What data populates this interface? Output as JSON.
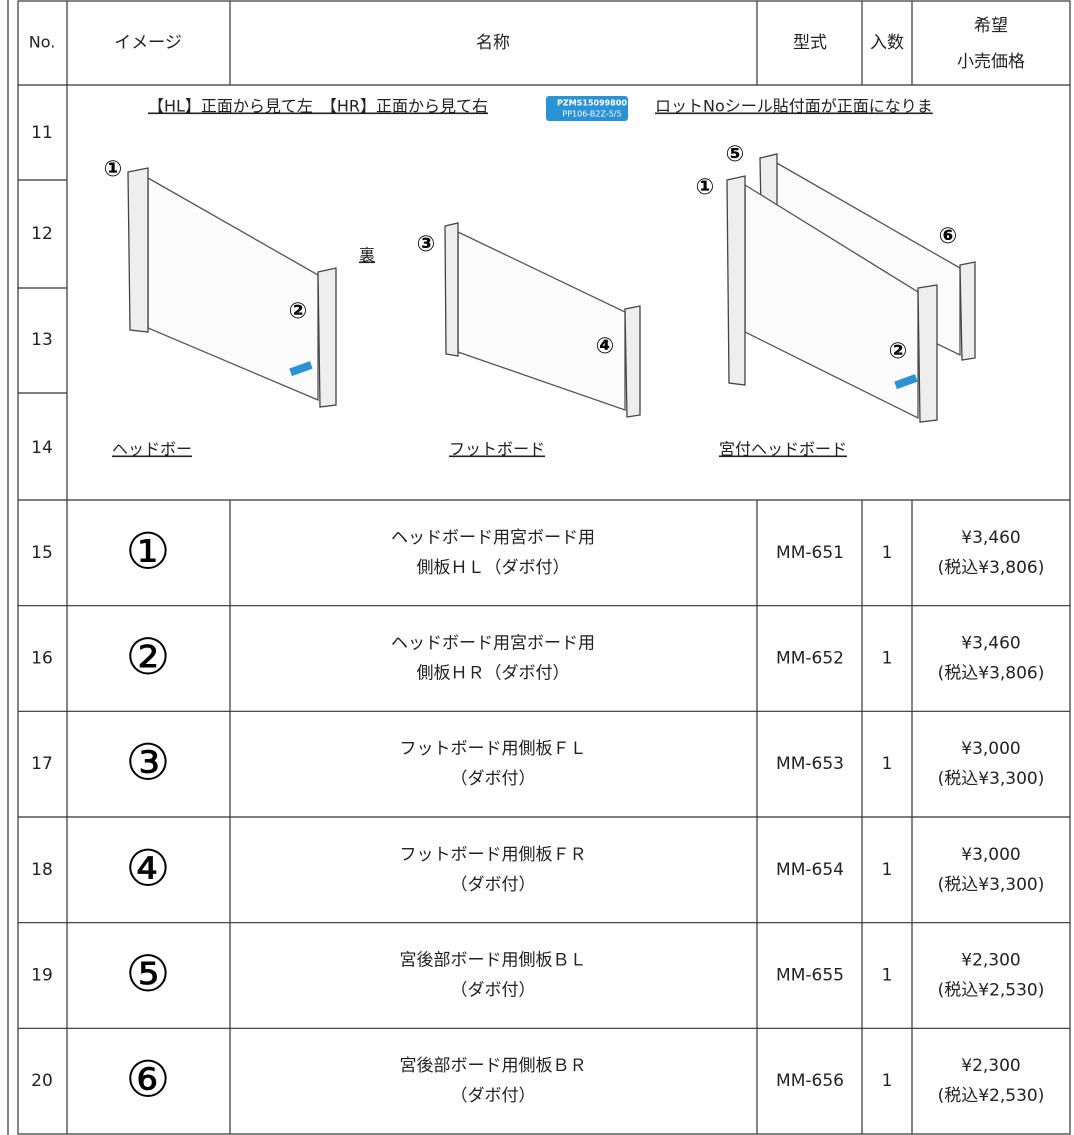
{
  "header": {
    "no": "No.",
    "image": "イメージ",
    "name": "名称",
    "model": "型式",
    "qty": "入数",
    "price": [
      "希望",
      "小売価格"
    ]
  },
  "illustration": {
    "row_numbers": [
      11,
      12,
      13,
      14
    ],
    "orientation_note": "【HL】正面から見て左　【HR】正面から見て右",
    "sticker": [
      "PZMS15099800",
      "PP106-B2Z-5/5"
    ],
    "sticker_note": "ロットNoシール貼付面が正面になりま",
    "back_label": "裏",
    "part_labels": [
      "①",
      "②",
      "③",
      "④",
      "⑤",
      "①",
      "⑥",
      "②"
    ],
    "captions": [
      "ヘッドボー",
      "フットボード",
      "宮付ヘッドボード"
    ]
  },
  "items": [
    {
      "no": 15,
      "image": "①",
      "name": [
        "ヘッドボード用宮ボード用",
        "側板ＨＬ（ダボ付）"
      ],
      "model": "MM-651",
      "qty": 1,
      "price": "¥3,460",
      "price_tax": "(税込¥3,806)"
    },
    {
      "no": 16,
      "image": "②",
      "name": [
        "ヘッドボード用宮ボード用",
        "側板ＨＲ（ダボ付）"
      ],
      "model": "MM-652",
      "qty": 1,
      "price": "¥3,460",
      "price_tax": "(税込¥3,806)"
    },
    {
      "no": 17,
      "image": "③",
      "name": [
        "フットボード用側板ＦＬ",
        "（ダボ付）"
      ],
      "model": "MM-653",
      "qty": 1,
      "price": "¥3,000",
      "price_tax": "(税込¥3,300)"
    },
    {
      "no": 18,
      "image": "④",
      "name": [
        "フットボード用側板ＦＲ",
        "（ダボ付）"
      ],
      "model": "MM-654",
      "qty": 1,
      "price": "¥3,000",
      "price_tax": "(税込¥3,300)"
    },
    {
      "no": 19,
      "image": "⑤",
      "name": [
        "宮後部ボード用側板ＢＬ",
        "（ダボ付）"
      ],
      "model": "MM-655",
      "qty": 1,
      "price": "¥2,300",
      "price_tax": "(税込¥2,530)"
    },
    {
      "no": 20,
      "image": "⑥",
      "name": [
        "宮後部ボード用側板ＢＲ",
        "（ダボ付）"
      ],
      "model": "MM-656",
      "qty": 1,
      "price": "¥2,300",
      "price_tax": "(税込¥2,530)"
    }
  ]
}
